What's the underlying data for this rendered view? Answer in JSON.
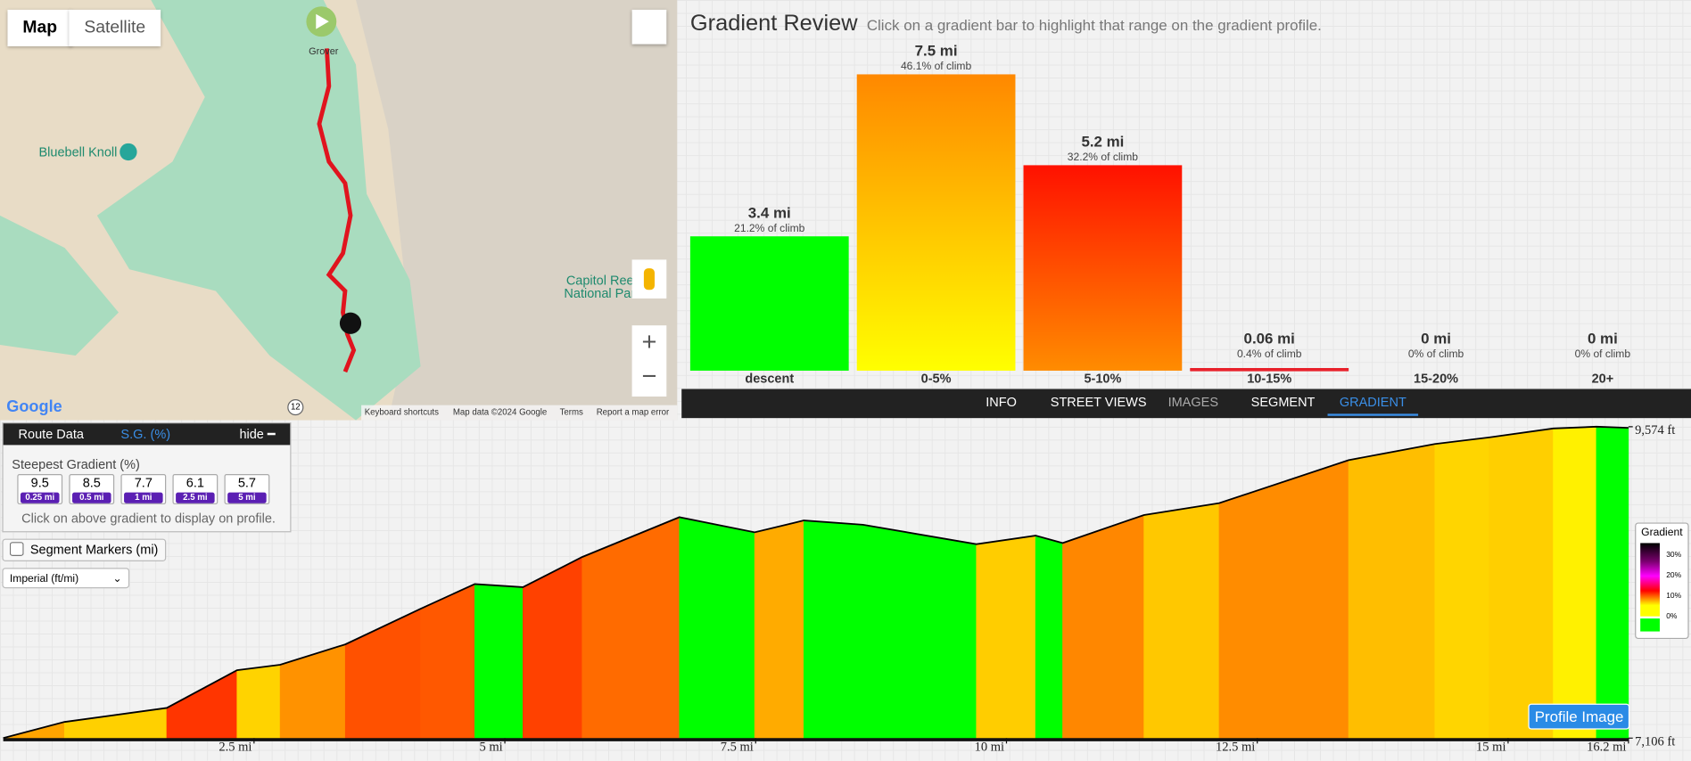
{
  "map": {
    "buttons": [
      "Map",
      "Satellite"
    ],
    "places": [
      "Grover",
      "Bluebell Knoll",
      "Capitol Ree",
      "National Par"
    ],
    "road": "12",
    "logo": "Google",
    "footer": [
      "Keyboard shortcuts",
      "Map data ©2024 Google",
      "Terms",
      "Report a map error"
    ]
  },
  "tabs": [
    "INFO",
    "STREET VIEWS",
    "IMAGES",
    "SEGMENT",
    "GRADIENT"
  ],
  "panel": {
    "tabs": [
      "Route Data",
      "S.G. (%)",
      "hide"
    ],
    "heading": "Steepest Gradient (%)",
    "items": [
      {
        "value": "9.5",
        "distance": "0.25 mi"
      },
      {
        "value": "8.5",
        "distance": "0.5 mi"
      },
      {
        "value": "7.7",
        "distance": "1 mi"
      },
      {
        "value": "6.1",
        "distance": "2.5 mi"
      },
      {
        "value": "5.7",
        "distance": "5 mi"
      }
    ],
    "hint": "Click on above gradient to display on profile.",
    "checkbox": "Segment Markers (mi)",
    "select": "Imperial (ft/mi)"
  },
  "legend": {
    "title": "Gradient",
    "labels": [
      "30%",
      "20%",
      "10%",
      "0%"
    ]
  },
  "button": "Profile Image",
  "chart_data": [
    {
      "type": "bar",
      "title": "Gradient Review",
      "subtitle": "Click on a gradient bar to highlight that range on the gradient profile.",
      "categories": [
        "descent",
        "0-5%",
        "5-10%",
        "10-15%",
        "15-20%",
        "20+"
      ],
      "values": [
        3.4,
        7.5,
        5.2,
        0.06,
        0,
        0
      ],
      "value_labels": [
        "3.4 mi",
        "7.5 mi",
        "5.2 mi",
        "0.06 mi",
        "0 mi",
        "0 mi"
      ],
      "share_labels": [
        "21.2% of climb",
        "46.1% of climb",
        "32.2% of climb",
        "0.4% of climb",
        "0% of climb",
        "0% of climb"
      ],
      "colors": [
        [
          "#00ff00",
          "#00ff00"
        ],
        [
          "#ff8800",
          "#ffff00"
        ],
        [
          "#ff1100",
          "#ff8c00"
        ],
        [
          "#e8202a",
          "#e8202a"
        ],
        [
          "#e8202a",
          "#e8202a"
        ],
        [
          "#e8202a",
          "#e8202a"
        ]
      ]
    },
    {
      "type": "area",
      "x": [
        0,
        0.61,
        1.63,
        2.33,
        2.76,
        3.41,
        4.16,
        4.7,
        5.18,
        5.77,
        6.74,
        7.49,
        7.98,
        8.57,
        9.7,
        10.29,
        10.56,
        11.37,
        12.12,
        13.41,
        14.27,
        14.81,
        15.45,
        15.88,
        16.2
      ],
      "values": [
        7106,
        7234,
        7345,
        7644,
        7687,
        7849,
        8131,
        8327,
        8302,
        8541,
        8857,
        8737,
        8831,
        8797,
        8643,
        8711,
        8652,
        8874,
        8968,
        9309,
        9437,
        9489,
        9560,
        9574,
        9565
      ],
      "xlim": [
        0,
        16.2
      ],
      "ylim": [
        7106,
        9574
      ],
      "xticks": [
        {
          "value": 2.5,
          "label": "2.5 mi"
        },
        {
          "value": 5,
          "label": "5 mi"
        },
        {
          "value": 7.5,
          "label": "7.5 mi"
        },
        {
          "value": 10,
          "label": "10 mi"
        },
        {
          "value": 12.5,
          "label": "12.5 mi"
        },
        {
          "value": 15,
          "label": "15 mi"
        },
        {
          "value": 16.2,
          "label": "16.2 mi"
        }
      ],
      "yticks": [
        {
          "value": 9574,
          "label": "9,574 ft"
        },
        {
          "value": 7106,
          "label": "7,106 ft"
        }
      ]
    }
  ]
}
